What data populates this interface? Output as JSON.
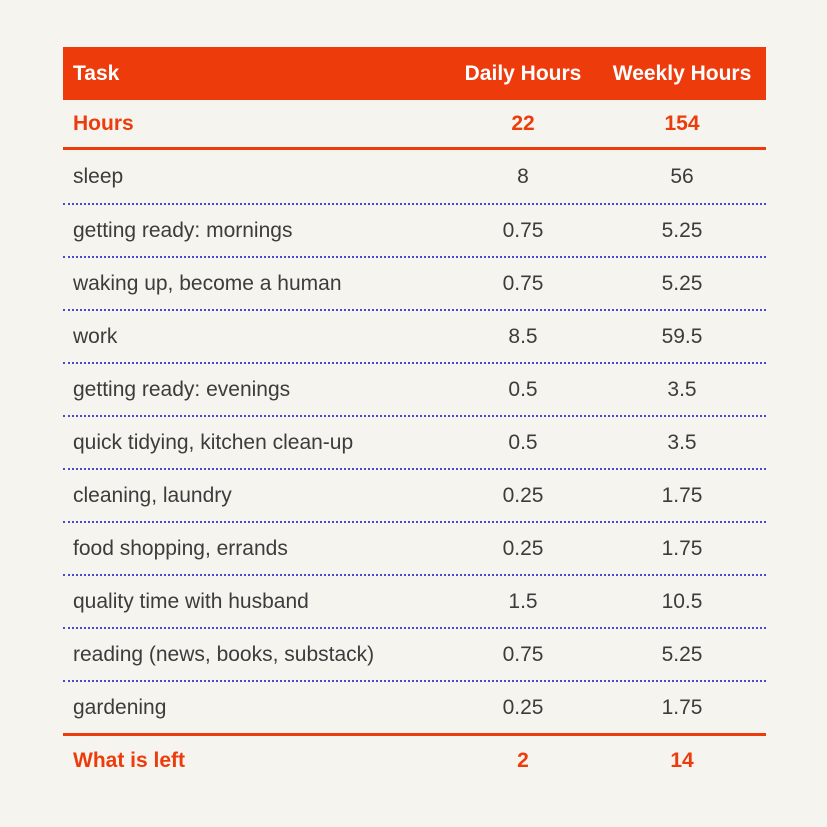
{
  "colors": {
    "accent": "#ee3b0c",
    "divider": "#4a4ad1",
    "body_text": "#3c3c3c",
    "page_background": "#f5f4ee",
    "header_text": "#ffffff"
  },
  "chart_data": {
    "type": "table",
    "columns": [
      "Task",
      "Daily Hours",
      "Weekly Hours"
    ],
    "totals": {
      "label": "Hours",
      "daily": "22",
      "weekly": "154"
    },
    "rows": [
      {
        "task": "sleep",
        "daily": "8",
        "weekly": "56"
      },
      {
        "task": "getting ready: mornings",
        "daily": "0.75",
        "weekly": "5.25"
      },
      {
        "task": "waking up, become a human",
        "daily": "0.75",
        "weekly": "5.25"
      },
      {
        "task": "work",
        "daily": "8.5",
        "weekly": "59.5"
      },
      {
        "task": "getting ready: evenings",
        "daily": "0.5",
        "weekly": "3.5"
      },
      {
        "task": "quick tidying, kitchen clean-up",
        "daily": "0.5",
        "weekly": "3.5"
      },
      {
        "task": "cleaning, laundry",
        "daily": "0.25",
        "weekly": "1.75"
      },
      {
        "task": "food shopping, errands",
        "daily": "0.25",
        "weekly": "1.75"
      },
      {
        "task": "quality time with husband",
        "daily": "1.5",
        "weekly": "10.5"
      },
      {
        "task": "reading (news, books, substack)",
        "daily": "0.75",
        "weekly": "5.25"
      },
      {
        "task": "gardening",
        "daily": "0.25",
        "weekly": "1.75"
      }
    ],
    "summary": {
      "label": "What is left",
      "daily": "2",
      "weekly": "14"
    },
    "layout": {
      "grid": "off",
      "row_divider_style": "dotted",
      "section_divider_style": "solid",
      "number_alignment": "center"
    }
  }
}
